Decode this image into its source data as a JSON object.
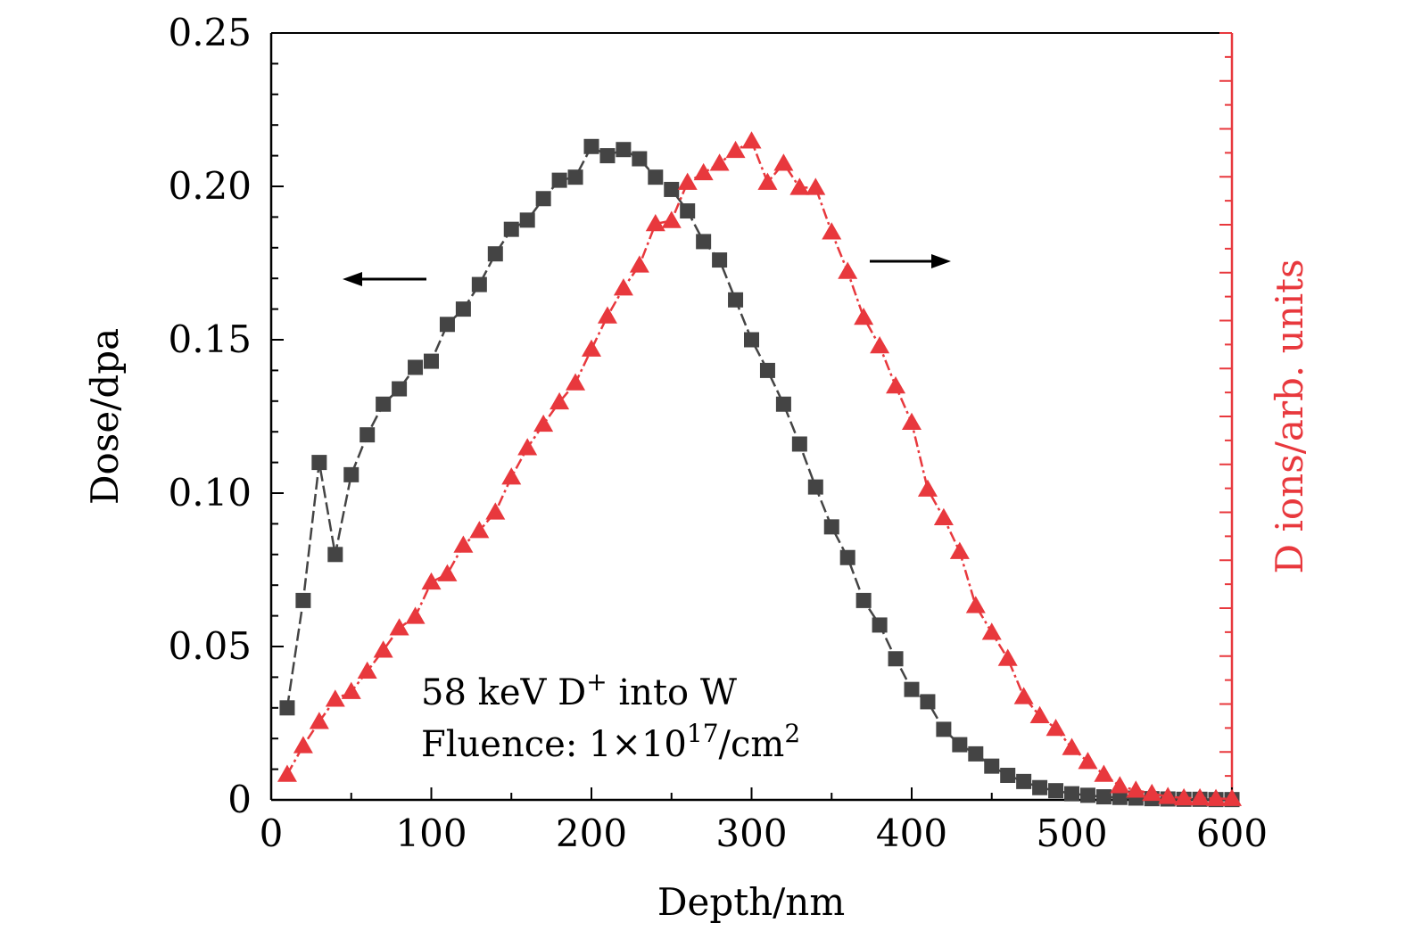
{
  "chart_data": {
    "type": "line",
    "xlabel": "Depth/nm",
    "ylabel_left": "Dose/dpa",
    "ylabel_right": "D ions/arb. units",
    "xlim": [
      0,
      600
    ],
    "ylim_left": [
      0,
      0.25
    ],
    "x_ticks": [
      "0",
      "100",
      "200",
      "300",
      "400",
      "500",
      "600"
    ],
    "y_ticks_left": [
      "0",
      "0.05",
      "0.10",
      "0.15",
      "0.20",
      "0.25"
    ],
    "grid": false,
    "annotation": {
      "line1_prefix": "58 keV D",
      "line1_sup": "+",
      "line1_suffix": " into W",
      "line2_prefix": "Fluence: 1×10",
      "line2_sup1": "17",
      "line2_mid": "/cm",
      "line2_sup2": "2"
    },
    "series": [
      {
        "axis": "left",
        "marker": "square",
        "color": "#444444",
        "x": [
          10,
          20,
          30,
          40,
          50,
          60,
          70,
          80,
          90,
          100,
          110,
          120,
          130,
          140,
          150,
          160,
          170,
          180,
          190,
          200,
          210,
          220,
          230,
          240,
          250,
          260,
          270,
          280,
          290,
          300,
          310,
          320,
          330,
          340,
          350,
          360,
          370,
          380,
          390,
          400,
          410,
          420,
          430,
          440,
          450,
          460,
          470,
          480,
          490,
          500,
          510,
          520,
          530,
          540,
          550,
          560,
          570,
          580,
          590,
          600
        ],
        "values": [
          0.03,
          0.065,
          0.11,
          0.08,
          0.106,
          0.119,
          0.129,
          0.134,
          0.141,
          0.143,
          0.155,
          0.16,
          0.168,
          0.178,
          0.186,
          0.189,
          0.196,
          0.202,
          0.203,
          0.213,
          0.21,
          0.212,
          0.209,
          0.203,
          0.199,
          0.192,
          0.182,
          0.176,
          0.163,
          0.15,
          0.14,
          0.129,
          0.116,
          0.102,
          0.089,
          0.079,
          0.065,
          0.057,
          0.046,
          0.036,
          0.032,
          0.023,
          0.018,
          0.015,
          0.011,
          0.008,
          0.006,
          0.004,
          0.003,
          0.002,
          0.0015,
          0.001,
          0.0008,
          0.0006,
          0.0004,
          0.0003,
          0.0002,
          0.0002,
          0.0001,
          0.0001
        ]
      },
      {
        "axis": "right",
        "marker": "triangle",
        "color": "#e8383d",
        "x": [
          10,
          20,
          30,
          40,
          50,
          60,
          70,
          80,
          90,
          100,
          110,
          120,
          130,
          140,
          150,
          160,
          170,
          180,
          190,
          200,
          210,
          220,
          230,
          240,
          250,
          260,
          270,
          280,
          290,
          300,
          310,
          320,
          330,
          340,
          350,
          360,
          370,
          380,
          390,
          400,
          410,
          420,
          430,
          440,
          450,
          460,
          470,
          480,
          490,
          500,
          510,
          520,
          530,
          540,
          550,
          560,
          570,
          580,
          590,
          600
        ],
        "values": [
          0.04,
          0.085,
          0.123,
          0.158,
          0.17,
          0.202,
          0.235,
          0.27,
          0.288,
          0.342,
          0.355,
          0.4,
          0.423,
          0.452,
          0.507,
          0.553,
          0.59,
          0.625,
          0.655,
          0.708,
          0.76,
          0.804,
          0.84,
          0.905,
          0.91,
          0.97,
          0.985,
          1.0,
          1.02,
          1.035,
          0.97,
          1.0,
          0.962,
          0.962,
          0.892,
          0.83,
          0.758,
          0.713,
          0.65,
          0.593,
          0.488,
          0.443,
          0.39,
          0.305,
          0.263,
          0.222,
          0.162,
          0.132,
          0.112,
          0.082,
          0.06,
          0.04,
          0.022,
          0.015,
          0.01,
          0.005,
          0.003,
          0.003,
          0.002,
          0.002
        ]
      }
    ]
  },
  "arrows": [
    {
      "direction": "left",
      "points_to_axis": "left"
    },
    {
      "direction": "right",
      "points_to_axis": "right"
    }
  ],
  "colors": {
    "left_axis": "#000000",
    "right_axis": "#e8383d",
    "series_left": "#444444",
    "series_right": "#e8383d"
  }
}
